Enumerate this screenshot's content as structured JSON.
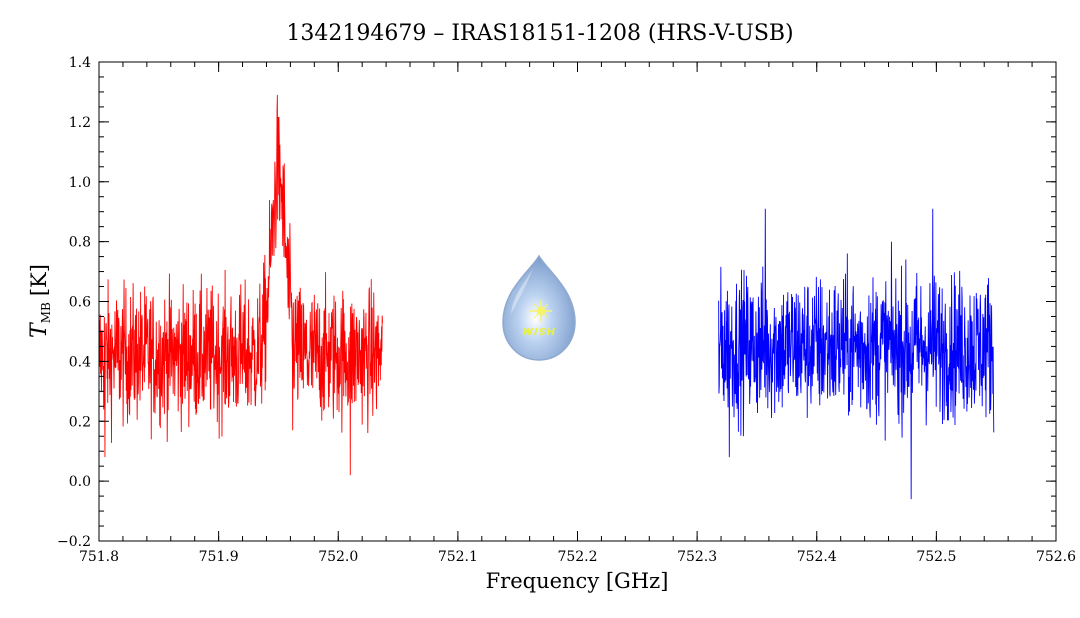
{
  "chart_data": {
    "type": "line",
    "title": "1342194679 – IRAS18151-1208 (HRS-V-USB)",
    "xlabel": "Frequency [GHz]",
    "ylabel": {
      "main": "T",
      "sub": "MB",
      "unit": "[K]"
    },
    "xlim": [
      751.8,
      752.6
    ],
    "ylim": [
      -0.2,
      1.4
    ],
    "x_ticks": [
      751.8,
      751.9,
      752.0,
      752.1,
      752.2,
      752.3,
      752.4,
      752.5,
      752.6
    ],
    "x_tick_labels": [
      "751.8",
      "751.9",
      "752.0",
      "752.1",
      "752.2",
      "752.3",
      "752.4",
      "752.5",
      "752.6"
    ],
    "y_ticks": [
      -0.2,
      0.0,
      0.2,
      0.4,
      0.6,
      0.8,
      1.0,
      1.2,
      1.4
    ],
    "y_tick_labels": [
      "−0.2",
      "0.0",
      "0.2",
      "0.4",
      "0.6",
      "0.8",
      "1.0",
      "1.2",
      "1.4"
    ],
    "series": [
      {
        "color": "#ff0000",
        "x_range": [
          751.8,
          752.037
        ],
        "baseline": 0.42,
        "noise_amplitude": 0.13,
        "peak": {
          "center": 751.95,
          "height": 0.6,
          "width": 0.006
        },
        "notable_points": [
          [
            751.949,
            1.29
          ],
          [
            752.01,
            0.02
          ],
          [
            751.805,
            0.08
          ],
          [
            751.962,
            0.17
          ]
        ]
      },
      {
        "color": "#0000ff",
        "x_range": [
          752.318,
          752.548
        ],
        "baseline": 0.45,
        "noise_amplitude": 0.14,
        "notable_points": [
          [
            752.357,
            0.91
          ],
          [
            752.497,
            0.91
          ],
          [
            752.479,
            -0.06
          ],
          [
            752.327,
            0.08
          ]
        ]
      }
    ],
    "grid": false,
    "legend": "none"
  },
  "logo": {
    "text": "WISH",
    "icon": "water-drop-star-logo"
  }
}
